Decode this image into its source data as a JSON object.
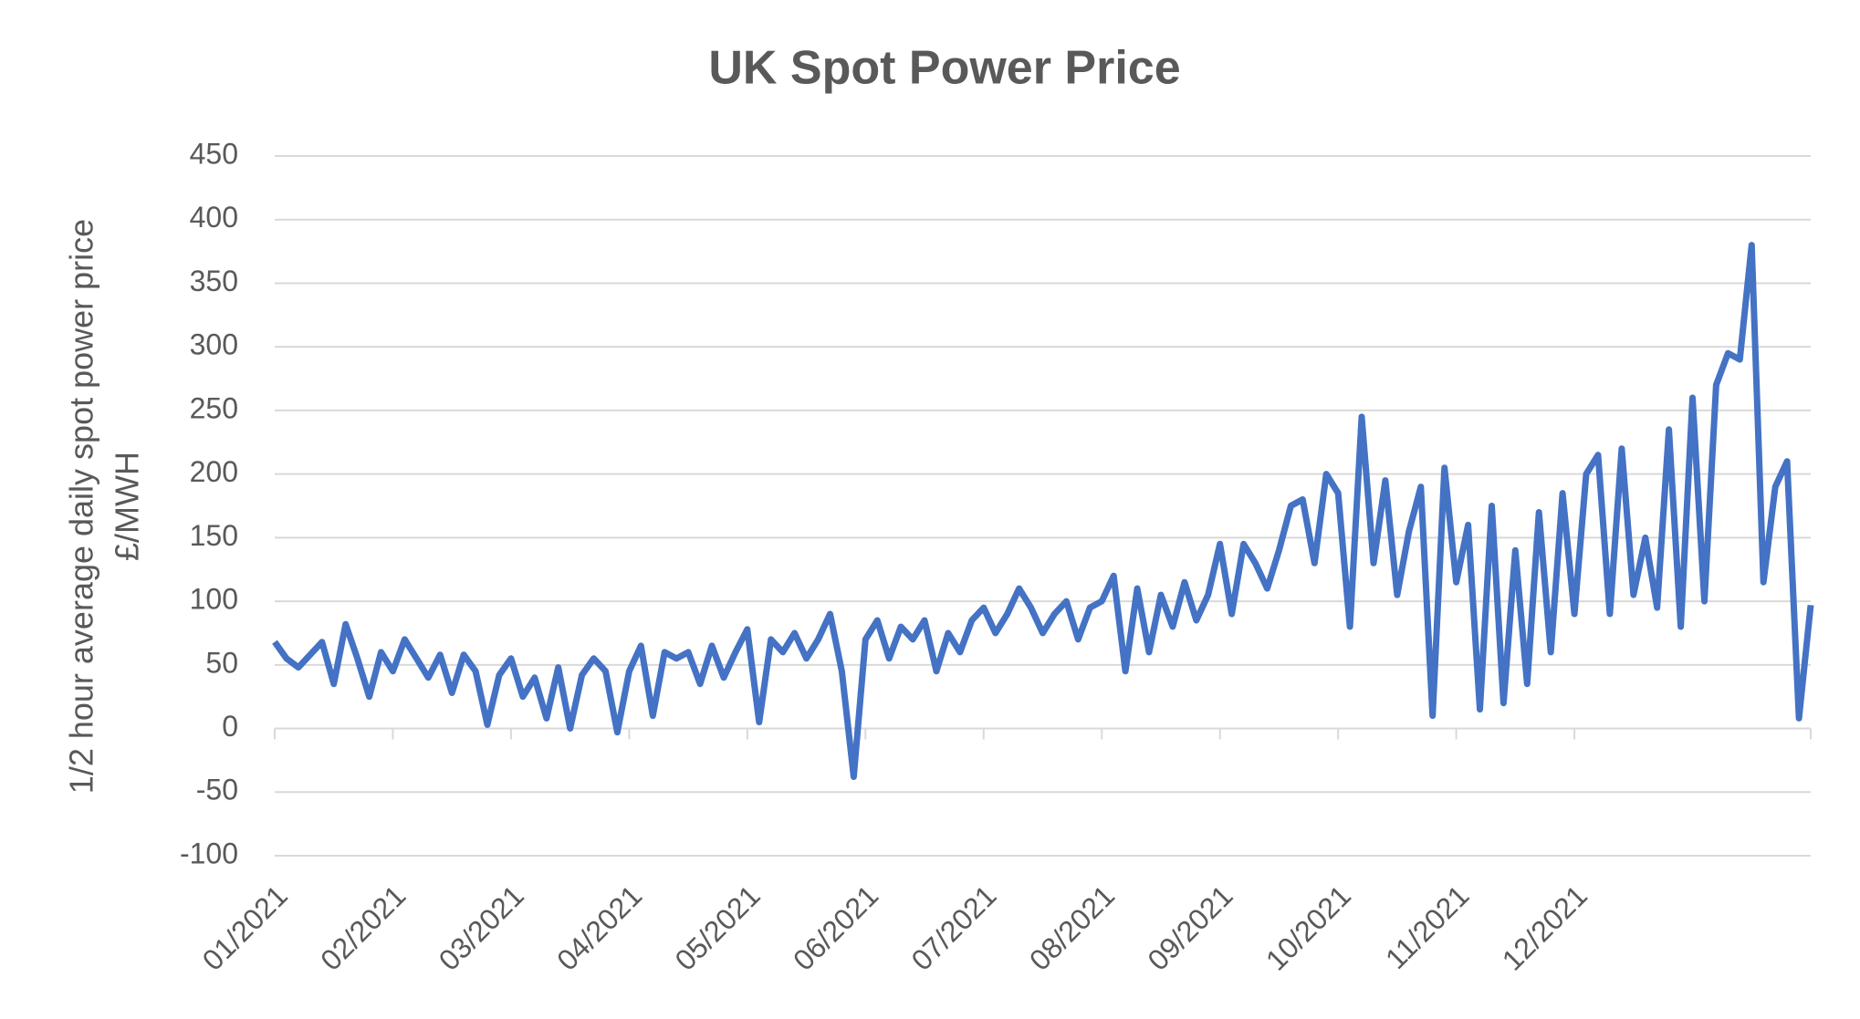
{
  "chart_data": {
    "type": "line",
    "title": "UK Spot Power Price",
    "ylabel": [
      "1/2 hour average daily spot power price",
      "£/MWH"
    ],
    "categories": [
      "01/2021",
      null,
      null,
      null,
      null,
      null,
      null,
      null,
      null,
      null,
      "02/2021",
      null,
      null,
      null,
      null,
      null,
      null,
      null,
      null,
      null,
      "03/2021",
      null,
      null,
      null,
      null,
      null,
      null,
      null,
      null,
      null,
      "04/2021",
      null,
      null,
      null,
      null,
      null,
      null,
      null,
      null,
      null,
      "05/2021",
      null,
      null,
      null,
      null,
      null,
      null,
      null,
      null,
      null,
      "06/2021",
      null,
      null,
      null,
      null,
      null,
      null,
      null,
      null,
      null,
      "07/2021",
      null,
      null,
      null,
      null,
      null,
      null,
      null,
      null,
      null,
      "08/2021",
      null,
      null,
      null,
      null,
      null,
      null,
      null,
      null,
      null,
      "09/2021",
      null,
      null,
      null,
      null,
      null,
      null,
      null,
      null,
      null,
      "10/2021",
      null,
      null,
      null,
      null,
      null,
      null,
      null,
      null,
      null,
      "11/2021",
      null,
      null,
      null,
      null,
      null,
      null,
      null,
      null,
      null,
      "12/2021",
      null,
      null,
      null,
      null,
      null,
      null,
      null,
      null,
      null,
      null,
      null,
      null,
      null,
      null,
      null,
      null,
      null,
      null,
      null,
      null
    ],
    "series": [
      {
        "name": "UK Spot Power Price",
        "color": "#4472c4",
        "values": [
          68,
          55,
          48,
          58,
          68,
          35,
          82,
          55,
          25,
          60,
          45,
          70,
          55,
          40,
          58,
          28,
          58,
          45,
          3,
          42,
          55,
          25,
          40,
          8,
          48,
          0,
          42,
          55,
          45,
          -3,
          45,
          65,
          10,
          60,
          55,
          60,
          35,
          65,
          40,
          60,
          78,
          5,
          70,
          60,
          75,
          55,
          70,
          90,
          45,
          -38,
          70,
          85,
          55,
          80,
          70,
          85,
          45,
          75,
          60,
          85,
          95,
          75,
          90,
          110,
          95,
          75,
          90,
          100,
          70,
          95,
          100,
          120,
          45,
          110,
          60,
          105,
          80,
          115,
          85,
          105,
          145,
          90,
          145,
          130,
          110,
          140,
          175,
          180,
          130,
          200,
          185,
          80,
          245,
          130,
          195,
          105,
          155,
          190,
          10,
          205,
          115,
          160,
          15,
          175,
          20,
          140,
          35,
          170,
          60,
          185,
          90,
          200,
          215,
          90,
          220,
          105,
          150,
          95,
          235,
          80,
          260,
          100,
          270,
          295,
          290,
          380,
          115,
          190,
          210,
          8,
          97
        ]
      }
    ],
    "ylim": [
      -100,
      450
    ],
    "yticks": [
      -100,
      -50,
      0,
      50,
      100,
      150,
      200,
      250,
      300,
      350,
      400,
      450
    ],
    "grid": true
  }
}
